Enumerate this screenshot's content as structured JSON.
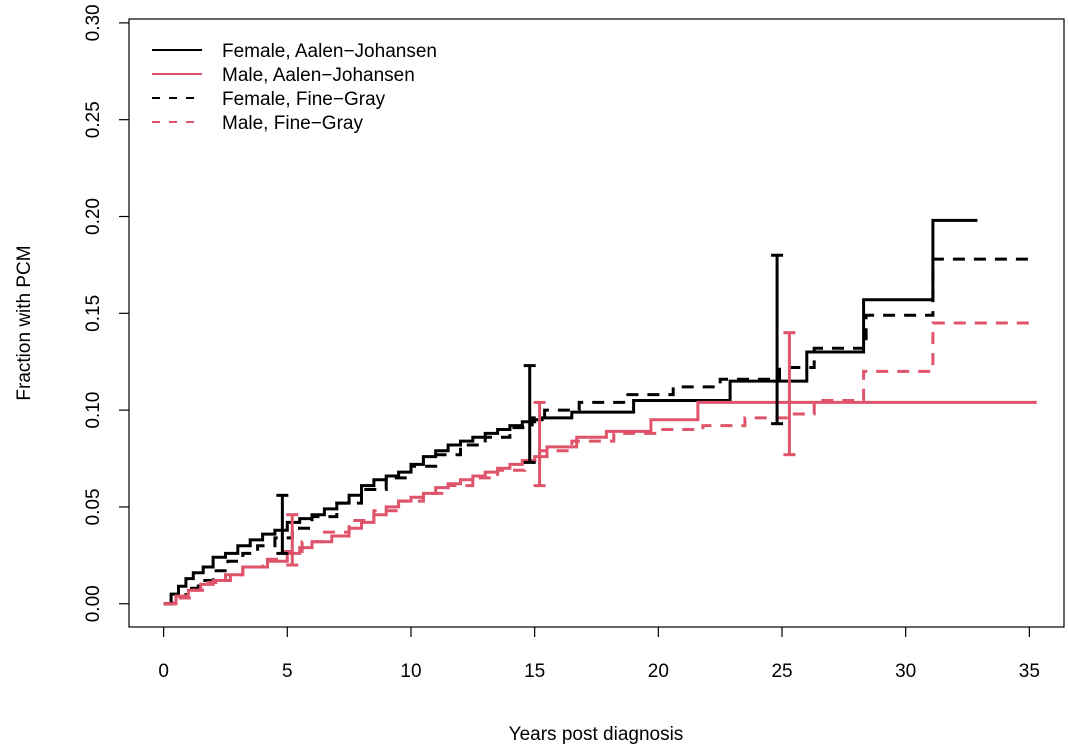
{
  "chart_data": {
    "type": "line",
    "title": "",
    "xlabel": "Years post diagnosis",
    "ylabel": "Fraction with PCM",
    "xlim": [
      -1.4,
      36.4
    ],
    "ylim": [
      -0.012,
      0.302
    ],
    "x_ticks": [
      0,
      5,
      10,
      15,
      20,
      25,
      30,
      35
    ],
    "x_tick_labels": [
      "0",
      "5",
      "10",
      "15",
      "20",
      "25",
      "30",
      "35"
    ],
    "y_ticks": [
      0.0,
      0.05,
      0.1,
      0.15,
      0.2,
      0.25,
      0.3
    ],
    "y_tick_labels": [
      "0.00",
      "0.05",
      "0.10",
      "0.15",
      "0.20",
      "0.25",
      "0.30"
    ],
    "grid": false,
    "legend_position": "top-left",
    "colors": {
      "female": "#000000",
      "male": "#DF536B"
    },
    "series": [
      {
        "name": "Female, Aalen−Johansen",
        "color": "#000000",
        "line": "solid",
        "step": true,
        "x": [
          0,
          0.3,
          0.6,
          0.9,
          1.2,
          1.6,
          2.0,
          2.5,
          3.0,
          3.5,
          4.0,
          4.5,
          5.0,
          5.5,
          6.0,
          6.5,
          7.0,
          7.5,
          8.0,
          8.5,
          9.0,
          9.5,
          10.0,
          10.5,
          11.0,
          11.5,
          12.0,
          12.5,
          13.0,
          13.5,
          14.0,
          14.5,
          15.0,
          15.3,
          16.5,
          19.0,
          22.9,
          26.0,
          28.3,
          31.1,
          32.9
        ],
        "y": [
          0.0,
          0.005,
          0.009,
          0.013,
          0.016,
          0.019,
          0.024,
          0.026,
          0.03,
          0.033,
          0.036,
          0.038,
          0.042,
          0.044,
          0.046,
          0.049,
          0.052,
          0.056,
          0.061,
          0.064,
          0.066,
          0.068,
          0.072,
          0.076,
          0.079,
          0.082,
          0.084,
          0.086,
          0.088,
          0.09,
          0.092,
          0.094,
          0.095,
          0.096,
          0.099,
          0.105,
          0.115,
          0.13,
          0.157,
          0.198,
          0.198
        ]
      },
      {
        "name": "Male, Aalen−Johansen",
        "color": "#DF536B",
        "line": "solid",
        "step": true,
        "x": [
          0,
          0.5,
          1.0,
          1.5,
          2.0,
          2.7,
          3.2,
          4.2,
          5.0,
          5.5,
          6.0,
          6.8,
          7.5,
          8.0,
          8.5,
          9.0,
          9.5,
          10.0,
          10.5,
          11.0,
          11.5,
          12.0,
          12.5,
          13.0,
          13.5,
          14.0,
          14.5,
          15.0,
          15.5,
          16.7,
          17.9,
          19.7,
          21.6,
          35.3
        ],
        "y": [
          0.0,
          0.004,
          0.007,
          0.01,
          0.012,
          0.015,
          0.019,
          0.022,
          0.026,
          0.029,
          0.032,
          0.035,
          0.039,
          0.042,
          0.046,
          0.05,
          0.053,
          0.055,
          0.057,
          0.06,
          0.062,
          0.064,
          0.066,
          0.068,
          0.07,
          0.072,
          0.074,
          0.076,
          0.081,
          0.086,
          0.089,
          0.095,
          0.104,
          0.104
        ]
      },
      {
        "name": "Female, Fine−Gray",
        "color": "#000000",
        "line": "dashed",
        "step": true,
        "x": [
          0,
          0.4,
          0.9,
          1.4,
          2.0,
          2.6,
          3.2,
          3.8,
          4.5,
          5.2,
          6.0,
          7.0,
          8.0,
          9.0,
          10.0,
          11.0,
          12.0,
          13.0,
          14.0,
          14.9,
          15.4,
          16.8,
          18.6,
          20.6,
          22.5,
          24.9,
          26.3,
          28.4,
          31.1,
          35.3
        ],
        "y": [
          0.0,
          0.004,
          0.008,
          0.012,
          0.017,
          0.022,
          0.026,
          0.03,
          0.034,
          0.039,
          0.045,
          0.052,
          0.059,
          0.065,
          0.071,
          0.077,
          0.082,
          0.086,
          0.091,
          0.096,
          0.1,
          0.104,
          0.108,
          0.112,
          0.116,
          0.122,
          0.132,
          0.149,
          0.178,
          0.178
        ]
      },
      {
        "name": "Male, Fine−Gray",
        "color": "#DF536B",
        "line": "dashed",
        "step": true,
        "x": [
          0,
          0.5,
          1.1,
          1.8,
          2.5,
          3.2,
          4.0,
          4.8,
          5.6,
          6.5,
          7.5,
          8.5,
          9.5,
          10.5,
          11.5,
          12.5,
          13.5,
          14.6,
          15.2,
          16.5,
          18.2,
          20.0,
          21.8,
          23.5,
          25.3,
          26.3,
          28.3,
          31.1,
          35.3
        ],
        "y": [
          0.0,
          0.003,
          0.007,
          0.011,
          0.015,
          0.019,
          0.023,
          0.027,
          0.032,
          0.037,
          0.043,
          0.048,
          0.053,
          0.057,
          0.061,
          0.065,
          0.069,
          0.074,
          0.079,
          0.084,
          0.088,
          0.09,
          0.092,
          0.096,
          0.098,
          0.105,
          0.12,
          0.145,
          0.145
        ]
      }
    ],
    "error_bars": [
      {
        "series": "Female, Aalen−Johansen",
        "color": "#000000",
        "x": 4.8,
        "y_low": 0.026,
        "y_high": 0.056
      },
      {
        "series": "Male, Aalen−Johansen",
        "color": "#DF536B",
        "x": 5.2,
        "y_low": 0.02,
        "y_high": 0.046
      },
      {
        "series": "Female, Aalen−Johansen",
        "color": "#000000",
        "x": 14.8,
        "y_low": 0.073,
        "y_high": 0.123
      },
      {
        "series": "Male, Aalen−Johansen",
        "color": "#DF536B",
        "x": 15.2,
        "y_low": 0.061,
        "y_high": 0.104
      },
      {
        "series": "Female, Aalen−Johansen",
        "color": "#000000",
        "x": 24.8,
        "y_low": 0.093,
        "y_high": 0.18
      },
      {
        "series": "Male, Aalen−Johansen",
        "color": "#DF536B",
        "x": 25.3,
        "y_low": 0.077,
        "y_high": 0.14
      }
    ]
  }
}
